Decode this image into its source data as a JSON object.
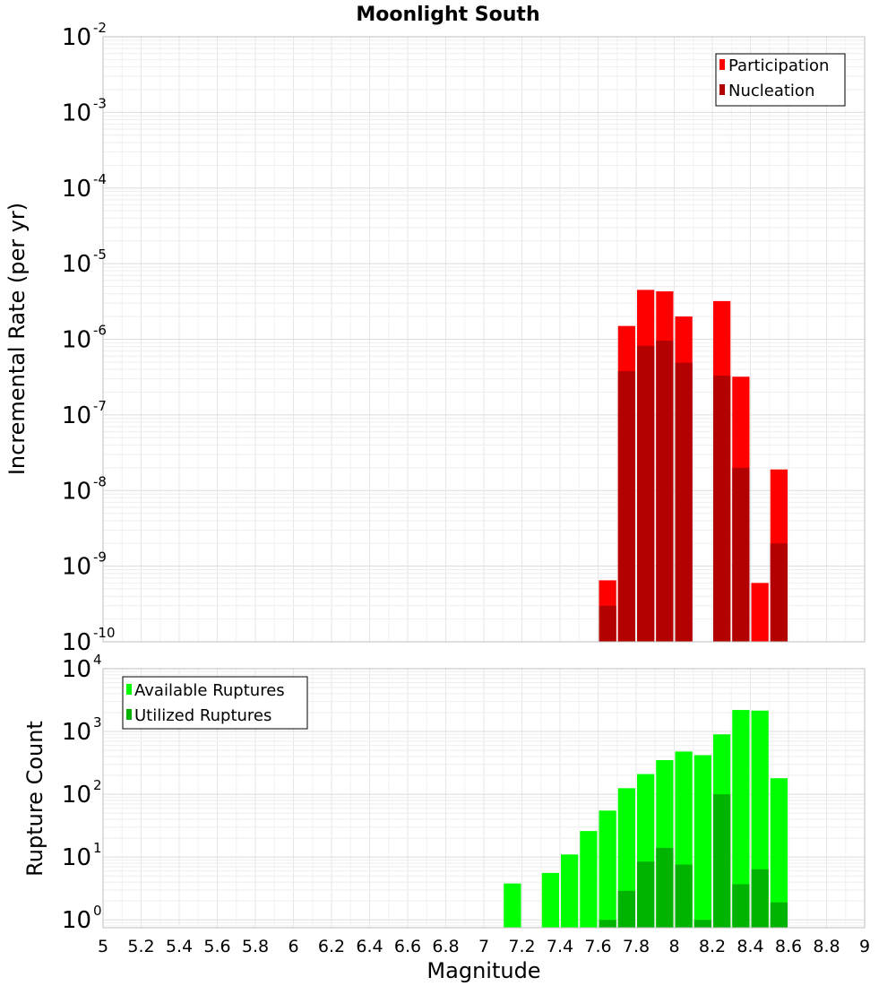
{
  "chart_data": [
    {
      "type": "bar",
      "title": "Moonlight South",
      "ylabel": "Incremental Rate (per yr)",
      "xlabel": "",
      "yscale": "log",
      "ylim": [
        1e-10,
        0.01
      ],
      "xlim": [
        5,
        9
      ],
      "bar_width": 0.1,
      "grid": true,
      "legend_position": "top-right",
      "series": [
        {
          "name": "Participation",
          "color": "#ff0000",
          "x": [
            7.65,
            7.75,
            7.85,
            7.95,
            8.05,
            8.25,
            8.35,
            8.45,
            8.55
          ],
          "values": [
            6.5e-10,
            1.5e-06,
            4.5e-06,
            4.3e-06,
            2e-06,
            3.2e-06,
            3.2e-07,
            6e-10,
            1.9e-08
          ]
        },
        {
          "name": "Nucleation",
          "color": "#b30000",
          "x": [
            7.65,
            7.75,
            7.85,
            7.95,
            8.05,
            8.25,
            8.35,
            8.45,
            8.55
          ],
          "values": [
            3e-10,
            3.8e-07,
            8.2e-07,
            9.6e-07,
            4.9e-07,
            3.3e-07,
            2e-08,
            1e-10,
            2e-09
          ]
        }
      ],
      "y_ticks": [
        {
          "mant": "10",
          "exp": "-2"
        },
        {
          "mant": "10",
          "exp": "-3"
        },
        {
          "mant": "10",
          "exp": "-4"
        },
        {
          "mant": "10",
          "exp": "-5"
        },
        {
          "mant": "10",
          "exp": "-6"
        },
        {
          "mant": "10",
          "exp": "-7"
        },
        {
          "mant": "10",
          "exp": "-8"
        },
        {
          "mant": "10",
          "exp": "-9"
        },
        {
          "mant": "10",
          "exp": "-10"
        }
      ]
    },
    {
      "type": "bar",
      "title": "",
      "ylabel": "Rupture Count",
      "xlabel": "Magnitude",
      "yscale": "log",
      "ylim": [
        0.75,
        10000
      ],
      "xlim": [
        5,
        9
      ],
      "bar_width": 0.1,
      "grid": true,
      "legend_position": "top-left",
      "series": [
        {
          "name": "Available Ruptures",
          "color": "#00ff00",
          "x": [
            7.15,
            7.35,
            7.45,
            7.55,
            7.65,
            7.75,
            7.85,
            7.95,
            8.05,
            8.15,
            8.25,
            8.35,
            8.45,
            8.55
          ],
          "values": [
            3.8,
            5.6,
            11,
            26,
            55,
            125,
            210,
            350,
            480,
            420,
            900,
            2200,
            2150,
            180
          ]
        },
        {
          "name": "Utilized Ruptures",
          "color": "#00b300",
          "x": [
            7.65,
            7.75,
            7.85,
            7.95,
            8.05,
            8.15,
            8.25,
            8.35,
            8.45,
            8.55
          ],
          "values": [
            1,
            2.9,
            8.5,
            14,
            7.6,
            1,
            100,
            3.7,
            6.4,
            1.9
          ]
        }
      ],
      "y_ticks": [
        {
          "mant": "10",
          "exp": "4"
        },
        {
          "mant": "10",
          "exp": "3"
        },
        {
          "mant": "10",
          "exp": "2"
        },
        {
          "mant": "10",
          "exp": "1"
        },
        {
          "mant": "10",
          "exp": "0"
        }
      ],
      "x_ticks": [
        "5",
        "5.2",
        "5.4",
        "5.6",
        "5.8",
        "6",
        "6.2",
        "6.4",
        "6.6",
        "6.8",
        "7",
        "7.2",
        "7.4",
        "7.6",
        "7.8",
        "8",
        "8.2",
        "8.4",
        "8.6",
        "8.8",
        "9"
      ]
    }
  ]
}
